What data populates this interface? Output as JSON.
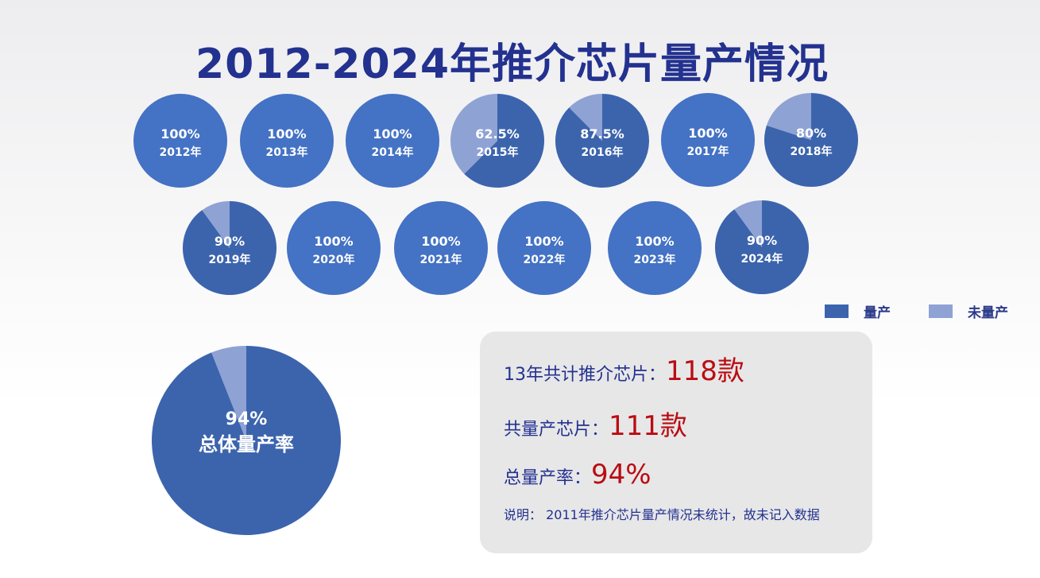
{
  "title": "2012-2024年推介芯片量产情况",
  "legend": {
    "produced": "量产",
    "not_produced": "未量产"
  },
  "colors": {
    "produced": "#3c64ad",
    "produced_full": "#4472c4",
    "not_produced": "#8ea2d4",
    "title": "#23318f",
    "value": "#b90d12"
  },
  "chart_data": {
    "type": "pie",
    "series_names": [
      "量产",
      "未量产"
    ],
    "years": [
      {
        "year": "2012年",
        "label": "100%",
        "value": 100
      },
      {
        "year": "2013年",
        "label": "100%",
        "value": 100
      },
      {
        "year": "2014年",
        "label": "100%",
        "value": 100
      },
      {
        "year": "2015年",
        "label": "62.5%",
        "value": 62.5
      },
      {
        "year": "2016年",
        "label": "87.5%",
        "value": 87.5
      },
      {
        "year": "2017年",
        "label": "100%",
        "value": 100
      },
      {
        "year": "2018年",
        "label": "80%",
        "value": 80
      },
      {
        "year": "2019年",
        "label": "90%",
        "value": 90
      },
      {
        "year": "2020年",
        "label": "100%",
        "value": 100
      },
      {
        "year": "2021年",
        "label": "100%",
        "value": 100
      },
      {
        "year": "2022年",
        "label": "100%",
        "value": 100
      },
      {
        "year": "2023年",
        "label": "100%",
        "value": 100
      },
      {
        "year": "2024年",
        "label": "90%",
        "value": 90
      }
    ],
    "overall": {
      "label": "94%",
      "caption": "总体量产率",
      "value": 94
    }
  },
  "summary": {
    "total_label": "13年共计推介芯片：",
    "total_value": "118款",
    "produced_label": "共量产芯片：",
    "produced_value": "111款",
    "rate_label": "总量产率：",
    "rate_value": "94%",
    "note": "说明： 2011年推介芯片量产情况未统计，故未记入数据"
  }
}
